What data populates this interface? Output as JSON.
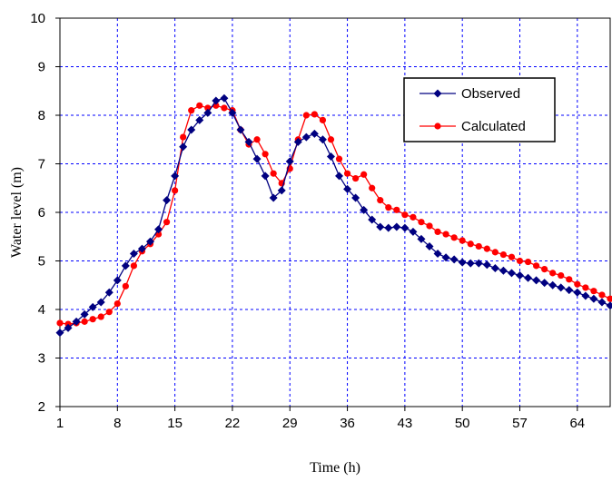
{
  "chart_data": {
    "type": "line",
    "title": "",
    "xlabel": "Time (h)",
    "ylabel": "Water level (m)",
    "xlim": [
      1,
      68
    ],
    "ylim": [
      2,
      10
    ],
    "xticks": [
      1,
      8,
      15,
      22,
      29,
      36,
      43,
      50,
      57,
      64
    ],
    "yticks": [
      2,
      3,
      4,
      5,
      6,
      7,
      8,
      9,
      10
    ],
    "grid": true,
    "legend": "top-right",
    "x": [
      1,
      2,
      3,
      4,
      5,
      6,
      7,
      8,
      9,
      10,
      11,
      12,
      13,
      14,
      15,
      16,
      17,
      18,
      19,
      20,
      21,
      22,
      23,
      24,
      25,
      26,
      27,
      28,
      29,
      30,
      31,
      32,
      33,
      34,
      35,
      36,
      37,
      38,
      39,
      40,
      41,
      42,
      43,
      44,
      45,
      46,
      47,
      48,
      49,
      50,
      51,
      52,
      53,
      54,
      55,
      56,
      57,
      58,
      59,
      60,
      61,
      62,
      63,
      64,
      65,
      66,
      67,
      68
    ],
    "series": [
      {
        "name": "Observed",
        "color": "#000080",
        "marker": "diamond",
        "values": [
          3.52,
          3.62,
          3.75,
          3.9,
          4.05,
          4.15,
          4.35,
          4.6,
          4.9,
          5.15,
          5.25,
          5.4,
          5.65,
          6.25,
          6.75,
          7.35,
          7.7,
          7.9,
          8.05,
          8.3,
          8.35,
          8.05,
          7.7,
          7.45,
          7.1,
          6.75,
          6.3,
          6.45,
          7.05,
          7.45,
          7.55,
          7.62,
          7.5,
          7.15,
          6.75,
          6.48,
          6.3,
          6.05,
          5.85,
          5.7,
          5.68,
          5.7,
          5.68,
          5.6,
          5.45,
          5.3,
          5.15,
          5.07,
          5.03,
          4.97,
          4.95,
          4.95,
          4.92,
          4.85,
          4.8,
          4.75,
          4.7,
          4.65,
          4.6,
          4.55,
          4.5,
          4.45,
          4.4,
          4.35,
          4.28,
          4.22,
          4.15,
          4.08
        ]
      },
      {
        "name": "Calculated",
        "color": "#ff0000",
        "marker": "circle",
        "values": [
          3.72,
          3.7,
          3.72,
          3.75,
          3.8,
          3.85,
          3.95,
          4.12,
          4.48,
          4.9,
          5.2,
          5.35,
          5.55,
          5.8,
          6.45,
          7.55,
          8.1,
          8.2,
          8.15,
          8.2,
          8.15,
          8.1,
          7.7,
          7.4,
          7.5,
          7.2,
          6.8,
          6.6,
          6.9,
          7.5,
          8.0,
          8.02,
          7.9,
          7.5,
          7.1,
          6.8,
          6.7,
          6.78,
          6.5,
          6.25,
          6.1,
          6.05,
          5.95,
          5.9,
          5.8,
          5.72,
          5.6,
          5.55,
          5.48,
          5.42,
          5.35,
          5.3,
          5.25,
          5.18,
          5.13,
          5.08,
          5.0,
          4.98,
          4.9,
          4.83,
          4.75,
          4.7,
          4.62,
          4.52,
          4.45,
          4.38,
          4.3,
          4.22
        ]
      }
    ]
  }
}
